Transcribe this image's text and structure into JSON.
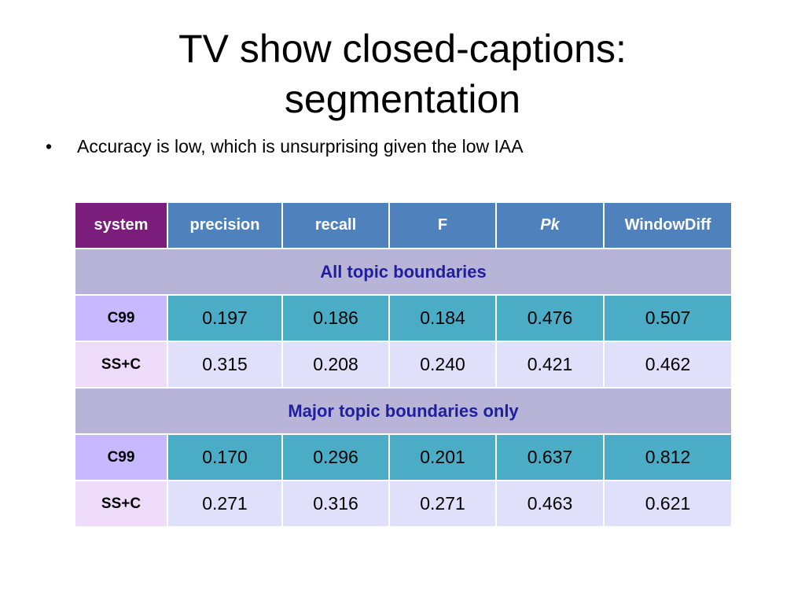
{
  "slide": {
    "title_line1": "TV show closed-captions:",
    "title_line2": "segmentation",
    "bullet_symbol": "•",
    "bullet_text": "Accuracy is low, which is unsurprising given the low IAA"
  },
  "table": {
    "headers": [
      "system",
      "precision",
      "recall",
      "F",
      "Pk",
      "WindowDiff"
    ],
    "sections": [
      {
        "label": "All topic boundaries",
        "rows": [
          {
            "system": "C99",
            "values": [
              "0.197",
              "0.186",
              "0.184",
              "0.476",
              "0.507"
            ]
          },
          {
            "system": "SS+C",
            "values": [
              "0.315",
              "0.208",
              "0.240",
              "0.421",
              "0.462"
            ]
          }
        ]
      },
      {
        "label": "Major topic boundaries only",
        "rows": [
          {
            "system": "C99",
            "values": [
              "0.170",
              "0.296",
              "0.201",
              "0.637",
              "0.812"
            ]
          },
          {
            "system": "SS+C",
            "values": [
              "0.271",
              "0.316",
              "0.271",
              "0.463",
              "0.621"
            ]
          }
        ]
      }
    ]
  },
  "colors": {
    "header_blue": "#4f81bd",
    "header_purple": "#7b1e7b",
    "section_band": "#b8b4d8",
    "section_text": "#1f1f9e",
    "c99_system_cell": "#c8b8ff",
    "c99_value_cell": "#4bacc6",
    "ssc_system_cell": "#eedcfa",
    "ssc_value_cell": "#e0e0fa"
  }
}
